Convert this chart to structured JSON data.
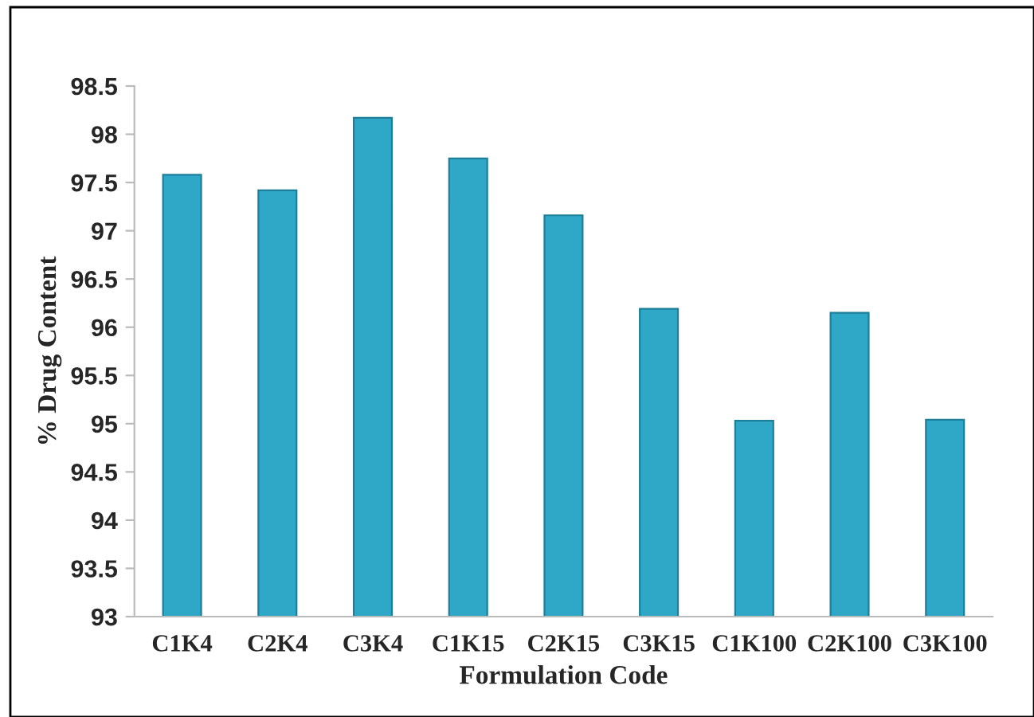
{
  "chart_data": {
    "type": "bar",
    "xlabel": "Formulation Code",
    "ylabel": "% Drug Content",
    "categories": [
      "C1K4",
      "C2K4",
      "C3K4",
      "C1K15",
      "C2K15",
      "C3K15",
      "C1K100",
      "C2K100",
      "C3K100"
    ],
    "values": [
      97.58,
      97.42,
      98.17,
      97.75,
      97.16,
      96.19,
      95.03,
      96.15,
      95.04
    ],
    "color": "#2fa8c8",
    "ylim": [
      93,
      98.5
    ],
    "yticks": [
      93,
      {
        "value": 93.5,
        "label": "93.5"
      },
      94,
      {
        "value": 94.5,
        "label": "94.5"
      },
      95,
      {
        "value": 95.5,
        "label": "95.5"
      },
      96,
      {
        "value": 96.5,
        "label": "96.5"
      },
      97,
      {
        "value": 97.5,
        "label": "97.5"
      },
      98,
      {
        "value": 98.5,
        "label": "98.5"
      }
    ],
    "grid": false
  }
}
